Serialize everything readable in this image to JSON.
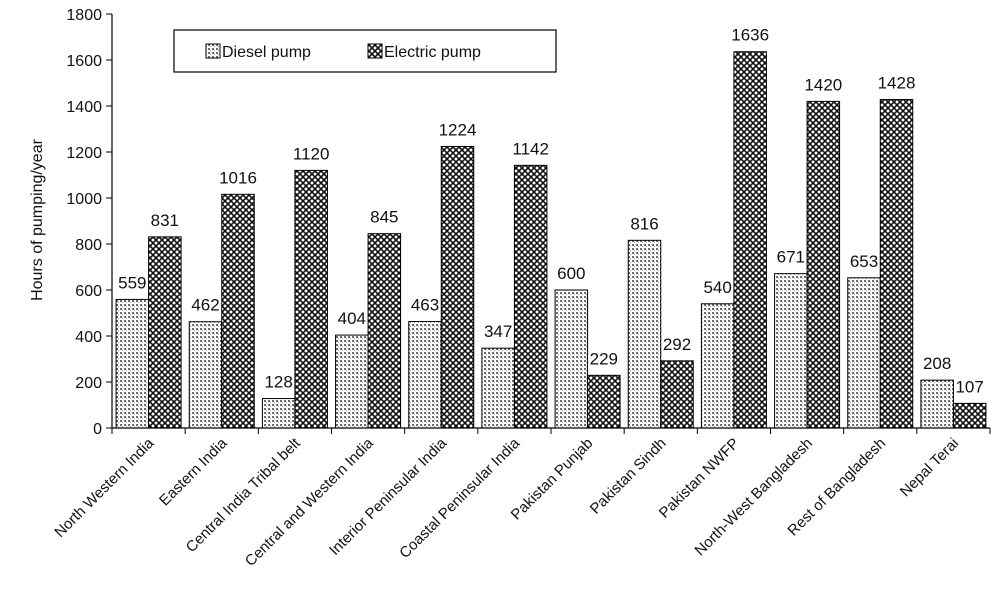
{
  "chart_data": {
    "type": "bar",
    "title": "",
    "xlabel": "",
    "ylabel": "Hours of pumping/year",
    "ylim": [
      0,
      1800
    ],
    "yticks": [
      0,
      200,
      400,
      600,
      800,
      1000,
      1200,
      1400,
      1600,
      1800
    ],
    "grid": false,
    "legend_position": "top-left",
    "categories": [
      "North Western India",
      "Eastern India",
      "Central India Tribal belt",
      "Central and Western India",
      "Interior Peninsular India",
      "Coastal Peninsular India",
      "Pakistan Punjab",
      "Pakistan Sindh",
      "Pakistan NWFP",
      "North-West Bangladesh",
      "Rest of  Bangladesh",
      "Nepal Terai"
    ],
    "series": [
      {
        "name": "Diesel pump",
        "pattern": "fine-dots",
        "values": [
          559,
          462,
          128,
          404,
          463,
          347,
          600,
          816,
          540,
          671,
          653,
          208
        ]
      },
      {
        "name": "Electric pump",
        "pattern": "crosshatch",
        "values": [
          831,
          1016,
          1120,
          845,
          1224,
          1142,
          229,
          292,
          1636,
          1420,
          1428,
          107
        ]
      }
    ]
  },
  "colors": {
    "axis": "#000000",
    "diesel_fill": "#d0d0d0",
    "electric_fill": "#4a4a4a"
  }
}
